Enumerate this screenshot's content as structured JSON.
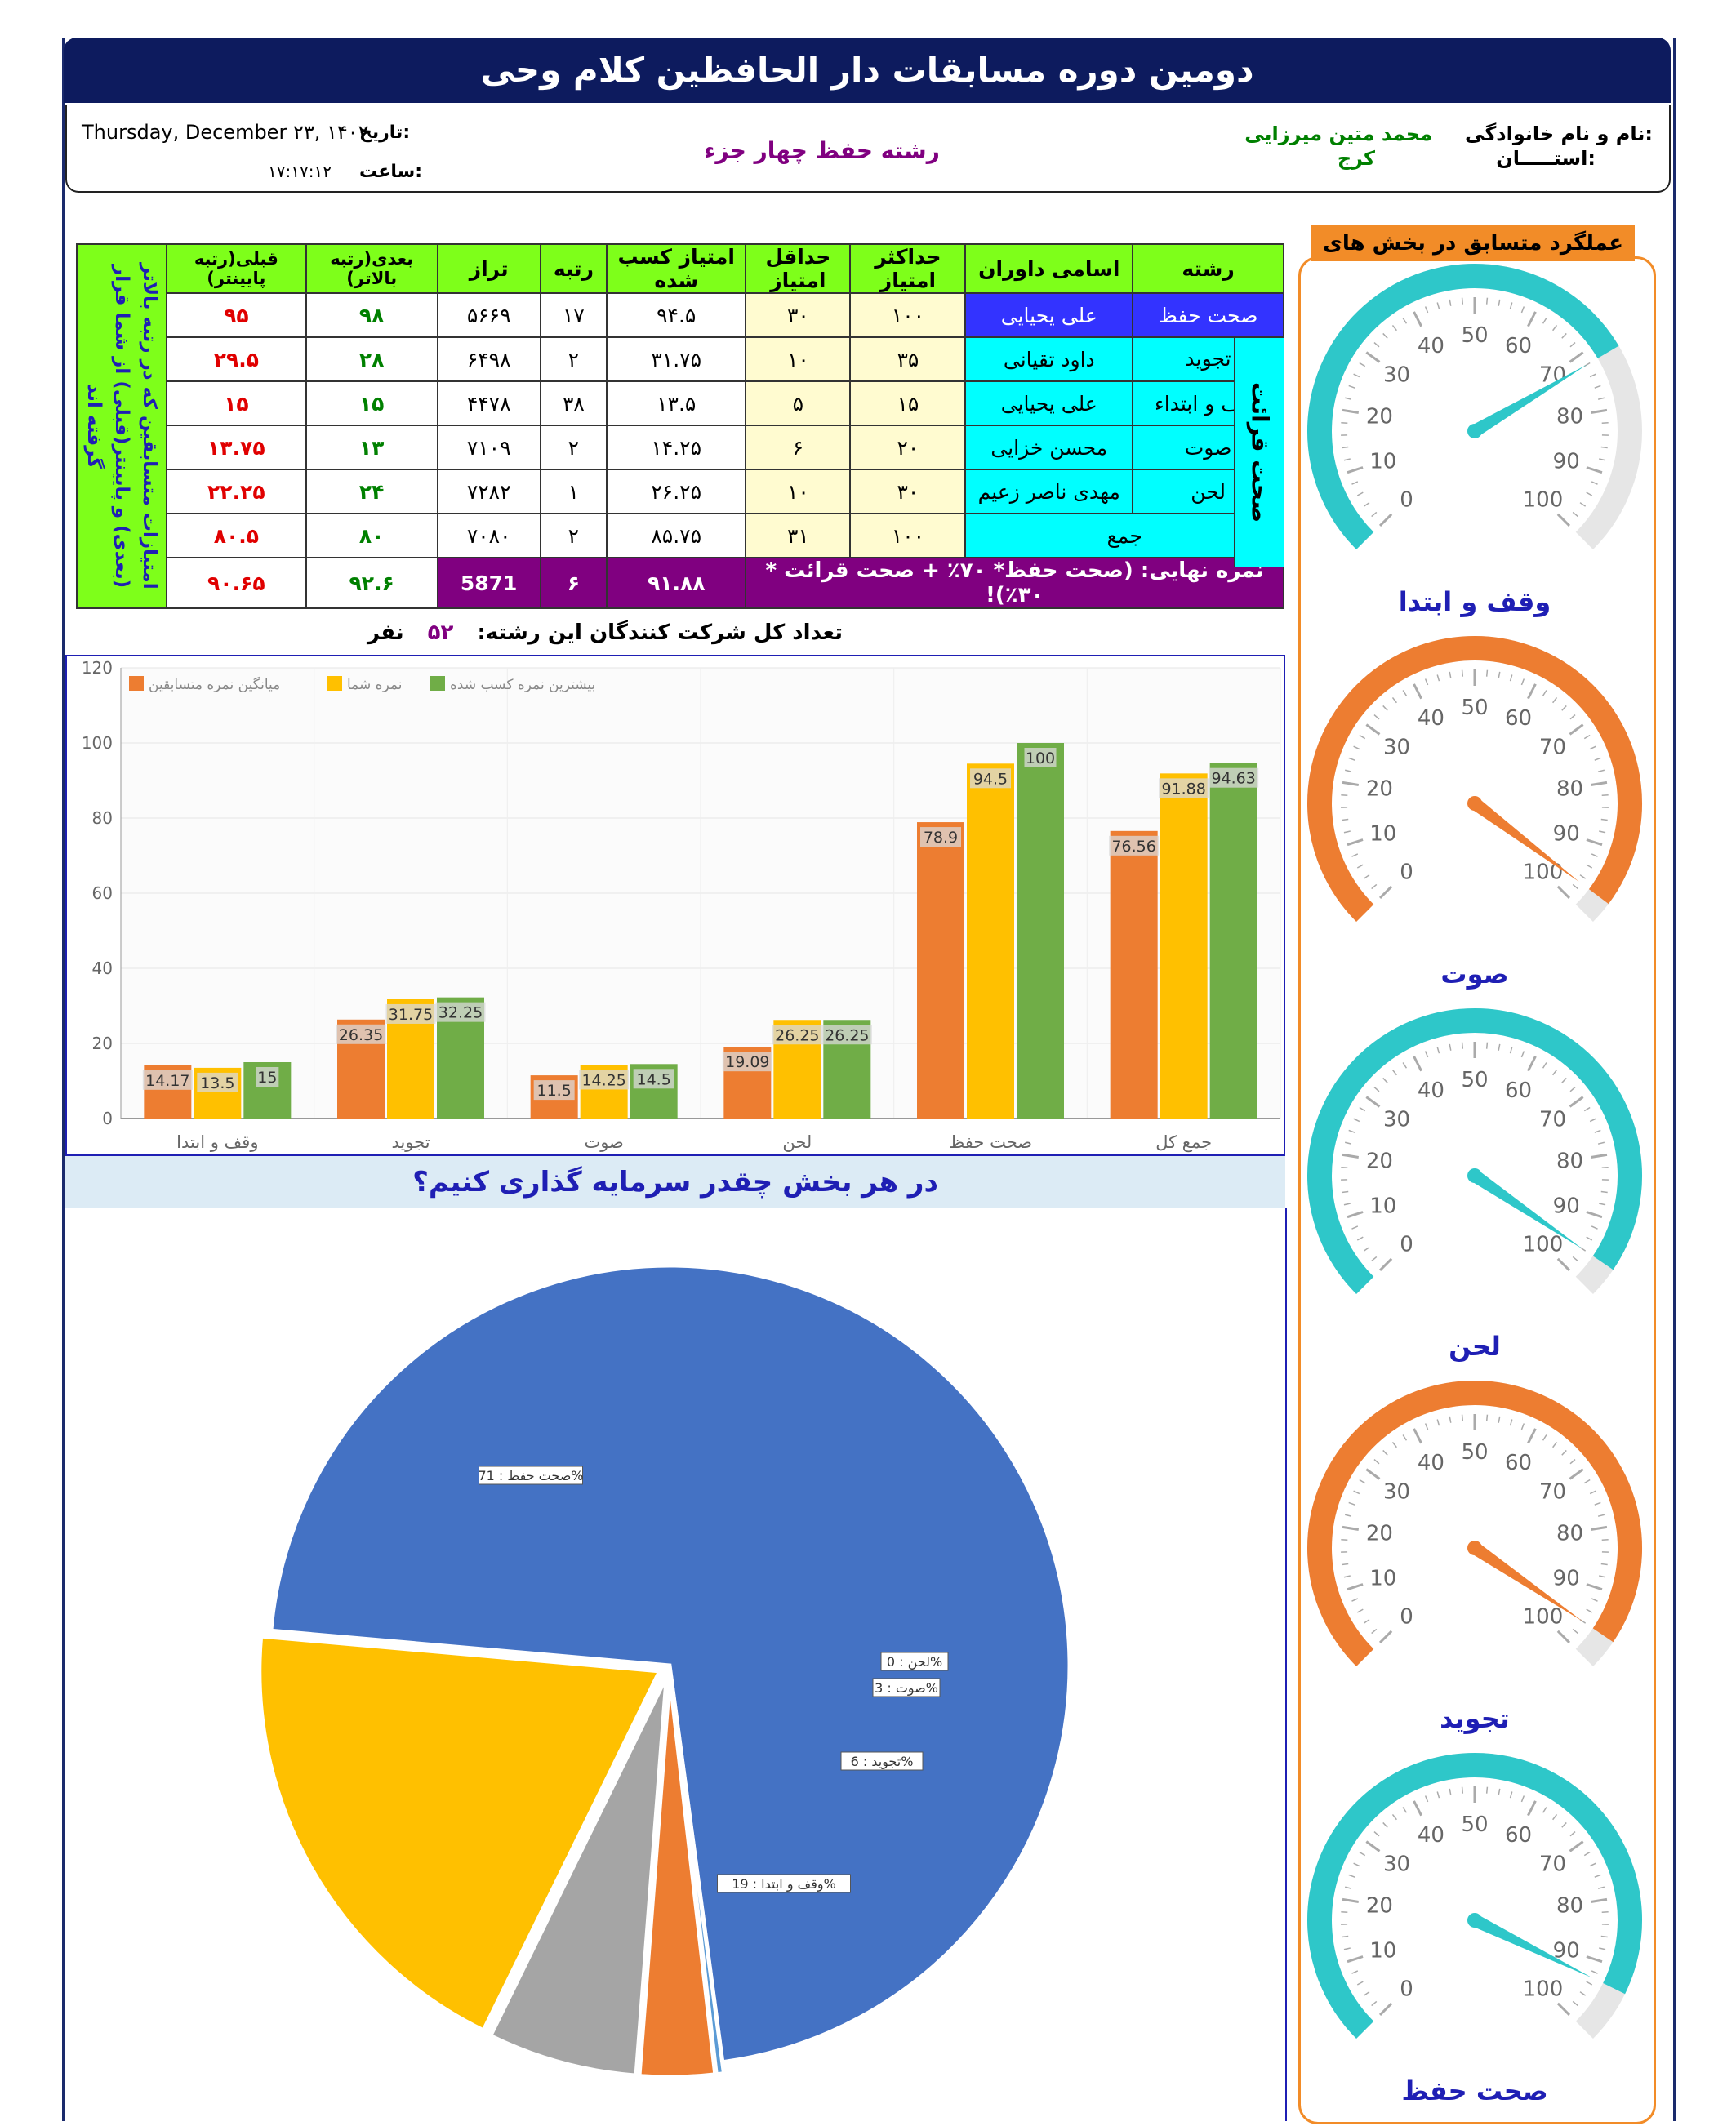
{
  "header": {
    "title": "دومین دوره مسابقات دار الحافظین کلام وحی",
    "name_label": "نام و نام خانوادگی:",
    "name_value": "محمد متین میرزایی",
    "province_label": "استـــــان:",
    "province_value": "کرج",
    "field_title": "رشته حفظ چهار جزء",
    "date_label": "تاریخ:",
    "date_value": "Thursday, December ۲۳, ۱۴۰۲",
    "time_label": "ساعت:",
    "time_value": "۱۷:۱۷:۱۲"
  },
  "table": {
    "headers": [
      "رشته",
      "اسامی داوران",
      "حداکثر امتیاز",
      "حداقل امتیاز",
      "امتیاز کسب شده",
      "رتبه",
      "تراز",
      "بعدی(رتبه بالاتر)",
      "قبلی(رتبه پایینتر)"
    ],
    "side_note": "امتیازات متسابقین که در رتبه بالاتر (بعدی) و پایینتر(قبلی) از شما قرار گرفته اند",
    "group_label": "صحت قرائت",
    "rows": [
      {
        "field": "صحت حفظ",
        "judge": "علی یحیایی",
        "max": "۱۰۰",
        "min": "۳۰",
        "score": "۹۴.۵",
        "rank": "۱۷",
        "taraz": "۵۶۶۹",
        "next": "۹۸",
        "prev": "۹۵"
      },
      {
        "field": "تجوید",
        "judge": "داود تقیانی",
        "max": "۳۵",
        "min": "۱۰",
        "score": "۳۱.۷۵",
        "rank": "۲",
        "taraz": "۶۴۹۸",
        "next": "۲۸",
        "prev": "۲۹.۵"
      },
      {
        "field": "وقف و ابتداء",
        "judge": "علی یحیایی",
        "max": "۱۵",
        "min": "۵",
        "score": "۱۳.۵",
        "rank": "۳۸",
        "taraz": "۴۴۷۸",
        "next": "۱۵",
        "prev": "۱۵"
      },
      {
        "field": "صوت",
        "judge": "محسن خزایی",
        "max": "۲۰",
        "min": "۶",
        "score": "۱۴.۲۵",
        "rank": "۲",
        "taraz": "۷۱۰۹",
        "next": "۱۳",
        "prev": "۱۳.۷۵"
      },
      {
        "field": "لحن",
        "judge": "مهدی ناصر زعیم",
        "max": "۳۰",
        "min": "۱۰",
        "score": "۲۶.۲۵",
        "rank": "۱",
        "taraz": "۷۲۸۲",
        "next": "۲۴",
        "prev": "۲۲.۲۵"
      },
      {
        "field": "جمع",
        "judge": "",
        "max": "۱۰۰",
        "min": "۳۱",
        "score": "۸۵.۷۵",
        "rank": "۲",
        "taraz": "۷۰۸۰",
        "next": "۸۰",
        "prev": "۸۰.۵"
      }
    ],
    "final": {
      "label": "نمره نهایی: (صحت حفظ* ۷۰٪ + صحت قرائت * ۳۰٪)!",
      "score": "۹۱.۸۸",
      "rank": "۶",
      "taraz": "5871",
      "next": "۹۲.۶",
      "prev": "۹۰.۶۵"
    },
    "count_label": "تعداد کل شرکت کنندگان این رشته:",
    "count_value": "۵۲",
    "count_unit": "نفر"
  },
  "bar_chart": {
    "type": "bar",
    "categories": [
      "وقف و ابتدا",
      "تجوید",
      "صوت",
      "لحن",
      "صحت حفظ",
      "جمع کل"
    ],
    "series": [
      {
        "name": "میانگین نمره متسابقین",
        "color": "#ed7d31",
        "values": [
          14.17,
          26.35,
          11.5,
          19.09,
          78.9,
          76.56
        ]
      },
      {
        "name": "نمره شما",
        "color": "#ffc000",
        "values": [
          13.5,
          31.75,
          14.25,
          26.25,
          94.5,
          91.88
        ]
      },
      {
        "name": "بیشترین نمره کسب شده",
        "color": "#70ad47",
        "values": [
          15,
          32.25,
          14.5,
          26.25,
          100,
          94.63
        ]
      }
    ],
    "yticks": [
      "0",
      "20",
      "40",
      "60",
      "80",
      "100",
      "120"
    ],
    "ylim": [
      0,
      120
    ],
    "grid": true,
    "legend": "top-left"
  },
  "pie": {
    "title": "در هر بخش چقدر سرمایه گذاری کنیم؟",
    "slices": [
      {
        "label": "صحت حفظ : 71%",
        "value": 71,
        "color": "#4472c4"
      },
      {
        "label": "وقف و ابتدا : 19%",
        "value": 19,
        "color": "#ffc000"
      },
      {
        "label": "تجوید : 6%",
        "value": 6,
        "color": "#a5a5a5"
      },
      {
        "label": "صوت : 3%",
        "value": 3,
        "color": "#ed7d31"
      },
      {
        "label": "لحن : 0%",
        "value": 0.3,
        "color": "#5b9bd5"
      }
    ]
  },
  "gauges": {
    "title": "عملگرد متسابق در بخش های مختلف",
    "ticks": [
      "0",
      "10",
      "20",
      "30",
      "40",
      "50",
      "60",
      "70",
      "80",
      "90",
      "100"
    ],
    "items": [
      {
        "label": "وقف و ابتدا",
        "value": 72,
        "color": "#2ec7c9"
      },
      {
        "label": "صوت",
        "value": 97,
        "color": "#ed7d31"
      },
      {
        "label": "لحن",
        "value": 96,
        "color": "#2ec7c9"
      },
      {
        "label": "تجوید",
        "value": 96,
        "color": "#ed7d31"
      },
      {
        "label": "صحت حفظ",
        "value": 93,
        "color": "#2ec7c9"
      }
    ]
  }
}
